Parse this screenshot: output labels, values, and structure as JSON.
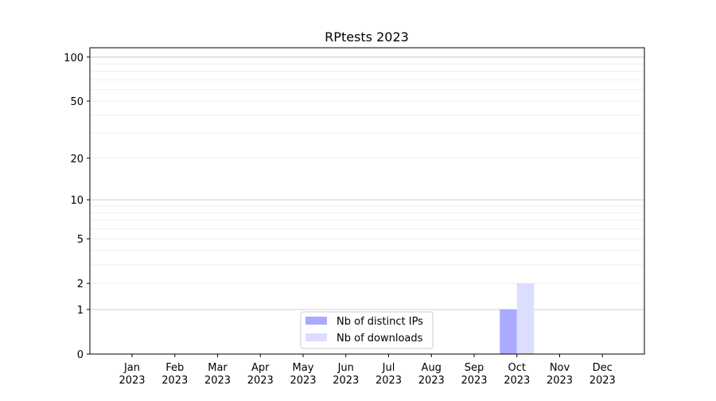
{
  "chart_data": {
    "type": "bar",
    "title": "RPtests 2023",
    "xlabel": "",
    "ylabel": "",
    "y_scale": "log(1+y)",
    "ylim": [
      0,
      116
    ],
    "yticks": [
      0,
      1,
      2,
      5,
      10,
      20,
      50,
      100
    ],
    "grid": true,
    "legend_position": "lower-center",
    "categories": [
      "Jan\n2023",
      "Feb\n2023",
      "Mar\n2023",
      "Apr\n2023",
      "May\n2023",
      "Jun\n2023",
      "Jul\n2023",
      "Aug\n2023",
      "Sep\n2023",
      "Oct\n2023",
      "Nov\n2023",
      "Dec\n2023"
    ],
    "series": [
      {
        "name": "Nb of distinct IPs",
        "color": "#aaaaff",
        "values": [
          0,
          0,
          0,
          0,
          0,
          0,
          0,
          0,
          0,
          1,
          0,
          0
        ]
      },
      {
        "name": "Nb of downloads",
        "color": "#ddddff",
        "values": [
          0,
          0,
          0,
          0,
          0,
          0,
          0,
          0,
          0,
          2,
          0,
          0
        ]
      }
    ]
  }
}
